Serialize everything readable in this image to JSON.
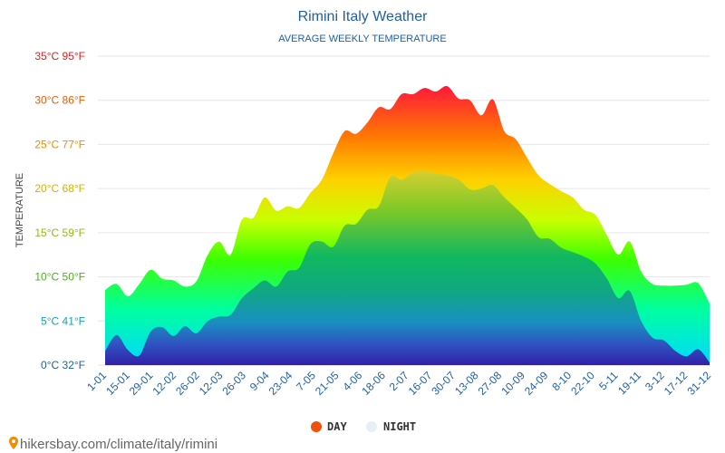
{
  "chart_data": {
    "type": "area",
    "title": "Rimini Italy Weather",
    "subtitle": "AVERAGE WEEKLY TEMPERATURE",
    "ylabel": "TEMPERATURE",
    "xlabel": "",
    "ylim": [
      0,
      35
    ],
    "grid": true,
    "legend_position": "bottom",
    "y_ticks": [
      {
        "value": 0,
        "label": "0°C 32°F",
        "color": "#1f5fa8"
      },
      {
        "value": 5,
        "label": "5°C 41°F",
        "color": "#11a6b8"
      },
      {
        "value": 10,
        "label": "10°C 50°F",
        "color": "#4caf20"
      },
      {
        "value": 15,
        "label": "15°C 59°F",
        "color": "#8cbf10"
      },
      {
        "value": 20,
        "label": "20°C 68°F",
        "color": "#d4b400"
      },
      {
        "value": 25,
        "label": "25°C 77°F",
        "color": "#f28c00"
      },
      {
        "value": 30,
        "label": "30°C 86°F",
        "color": "#f25a00"
      },
      {
        "value": 35,
        "label": "35°C 95°F",
        "color": "#e02020"
      }
    ],
    "x_tick_labels": [
      "1-01",
      "15-01",
      "29-01",
      "12-02",
      "26-02",
      "12-03",
      "26-03",
      "9-04",
      "23-04",
      "7-05",
      "21-05",
      "4-06",
      "18-06",
      "2-07",
      "16-07",
      "30-07",
      "13-08",
      "27-08",
      "10-09",
      "24-09",
      "8-10",
      "22-10",
      "5-11",
      "19-11",
      "3-12",
      "17-12",
      "31-12"
    ],
    "series": [
      {
        "name": "DAY",
        "values": [
          8.5,
          9.2,
          7.8,
          9.2,
          10.8,
          9.8,
          9.6,
          8.9,
          9.5,
          12.5,
          14,
          12.5,
          16.5,
          16.7,
          19,
          17.5,
          18,
          17.8,
          19.5,
          21,
          24,
          26.5,
          26.2,
          27.5,
          29.2,
          29,
          30.7,
          30.7,
          31.4,
          31,
          31.6,
          30.2,
          30,
          28.3,
          30.1,
          26.5,
          25.6,
          23.5,
          21.5,
          20.5,
          19.7,
          19,
          17.6,
          17,
          14.7,
          12.5,
          14,
          10.6,
          9.2,
          9,
          9,
          9.1,
          9.3,
          7
        ]
      },
      {
        "name": "NIGHT",
        "values": [
          1.6,
          3.4,
          1.7,
          1.1,
          3.8,
          4.3,
          3.3,
          4.4,
          3.6,
          5,
          5.5,
          5.7,
          7.6,
          8.7,
          9.6,
          8.9,
          10.6,
          11,
          13.7,
          14,
          13.4,
          15.8,
          16,
          17.6,
          18,
          21.3,
          21,
          21.8,
          22,
          21.7,
          21.5,
          21,
          19.9,
          20,
          20.4,
          19,
          17.8,
          16.5,
          14.5,
          14.3,
          13.3,
          12.8,
          12.3,
          11.5,
          9.8,
          7.6,
          8.4,
          5,
          3.1,
          2.8,
          1.6,
          1,
          1.8,
          0.3
        ]
      }
    ]
  },
  "legend": {
    "day": {
      "label": "DAY",
      "color": "#f24f0c"
    },
    "night": {
      "label": "NIGHT",
      "color": "#e8eef6"
    }
  },
  "source": "hikersbay.com/climate/italy/rimini",
  "colors": {
    "title": "#1f5fa8",
    "day_gradient": [
      "#ff1a3a",
      "#ff7a00",
      "#ffd000",
      "#c8ff00",
      "#3cff00",
      "#00ffa0",
      "#00d8ff"
    ],
    "night_gradient": [
      "#d8d030",
      "#7ac828",
      "#10b860",
      "#10a880",
      "#1890c0",
      "#3050c0",
      "#3020a8"
    ]
  }
}
